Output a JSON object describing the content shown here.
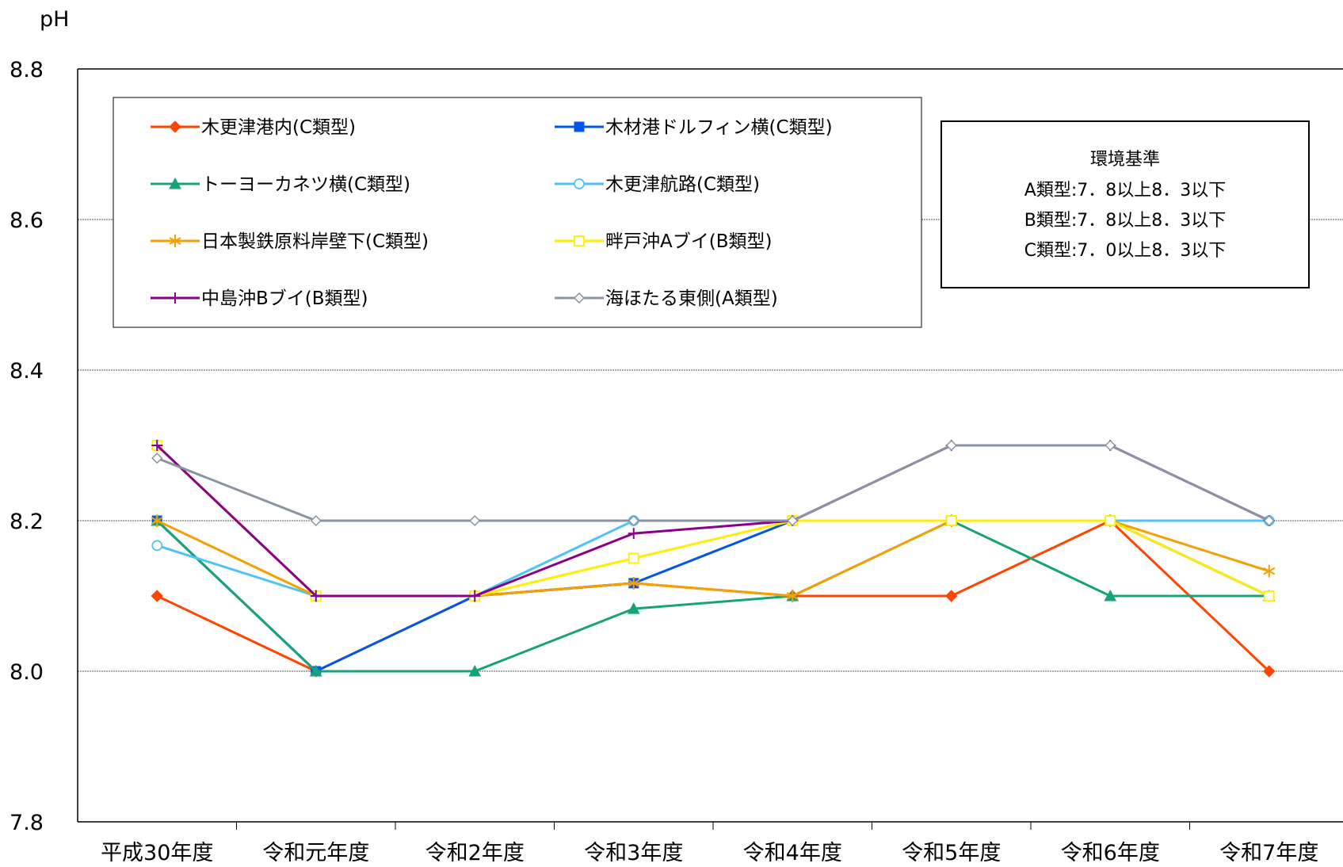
{
  "chart_data": {
    "type": "line",
    "title": "",
    "ylabel": "pH",
    "xlabel": "",
    "ylim": [
      7.8,
      8.8
    ],
    "yticks": [
      "7.8",
      "8.0",
      "8.2",
      "8.4",
      "8.6",
      "8.8"
    ],
    "grid": "horizontal",
    "categories": [
      "平成30年度",
      "令和元年度",
      "令和2年度",
      "令和3年度",
      "令和4年度",
      "令和5年度",
      "令和6年度",
      "令和7年度"
    ],
    "legend_position": "top-left",
    "series": [
      {
        "name": "木更津港内(C類型)",
        "color": "#ff4500",
        "marker": "diamond-filled",
        "values": [
          8.1,
          8.0,
          8.1,
          8.117,
          8.1,
          8.1,
          8.2,
          8.0
        ]
      },
      {
        "name": "木材港ドルフィン横(C類型)",
        "color": "#0055ee",
        "marker": "square-filled",
        "values": [
          8.2,
          8.0,
          8.1,
          8.117,
          8.2,
          8.2,
          8.2,
          8.1
        ]
      },
      {
        "name": "トーヨーカネツ横(C類型)",
        "color": "#17a37a",
        "marker": "triangle-filled",
        "values": [
          8.2,
          8.0,
          8.0,
          8.083,
          8.1,
          8.2,
          8.1,
          8.1
        ]
      },
      {
        "name": "木更津航路(C類型)",
        "color": "#4fc3f7",
        "marker": "circle-open",
        "values": [
          8.167,
          8.1,
          8.1,
          8.2,
          8.2,
          8.2,
          8.2,
          8.2
        ]
      },
      {
        "name": "日本製鉄原料岸壁下(C類型)",
        "color": "#f5a000",
        "marker": "asterisk",
        "values": [
          8.2,
          8.1,
          8.1,
          8.117,
          8.1,
          8.2,
          8.2,
          8.133
        ]
      },
      {
        "name": "畔戸沖Aブイ(B類型)",
        "color": "#ffee00",
        "marker": "square-open",
        "values": [
          8.3,
          8.1,
          8.1,
          8.15,
          8.2,
          8.2,
          8.2,
          8.1
        ]
      },
      {
        "name": "中島沖Bブイ(B類型)",
        "color": "#8b008b",
        "marker": "plus",
        "values": [
          8.3,
          8.1,
          8.1,
          8.183,
          8.2,
          8.3,
          8.3,
          8.2
        ]
      },
      {
        "name": "海ほたる東側(A類型)",
        "color": "#8a93a3",
        "marker": "diamond-open",
        "values": [
          8.283,
          8.2,
          8.2,
          8.2,
          8.2,
          8.3,
          8.3,
          8.2
        ]
      }
    ],
    "annotation": {
      "title": "環境基準",
      "lines": [
        "A類型:7．8以上8．3以下",
        "B類型:7．8以上8．3以下",
        "C類型:7．0以上8．3以下"
      ]
    }
  }
}
